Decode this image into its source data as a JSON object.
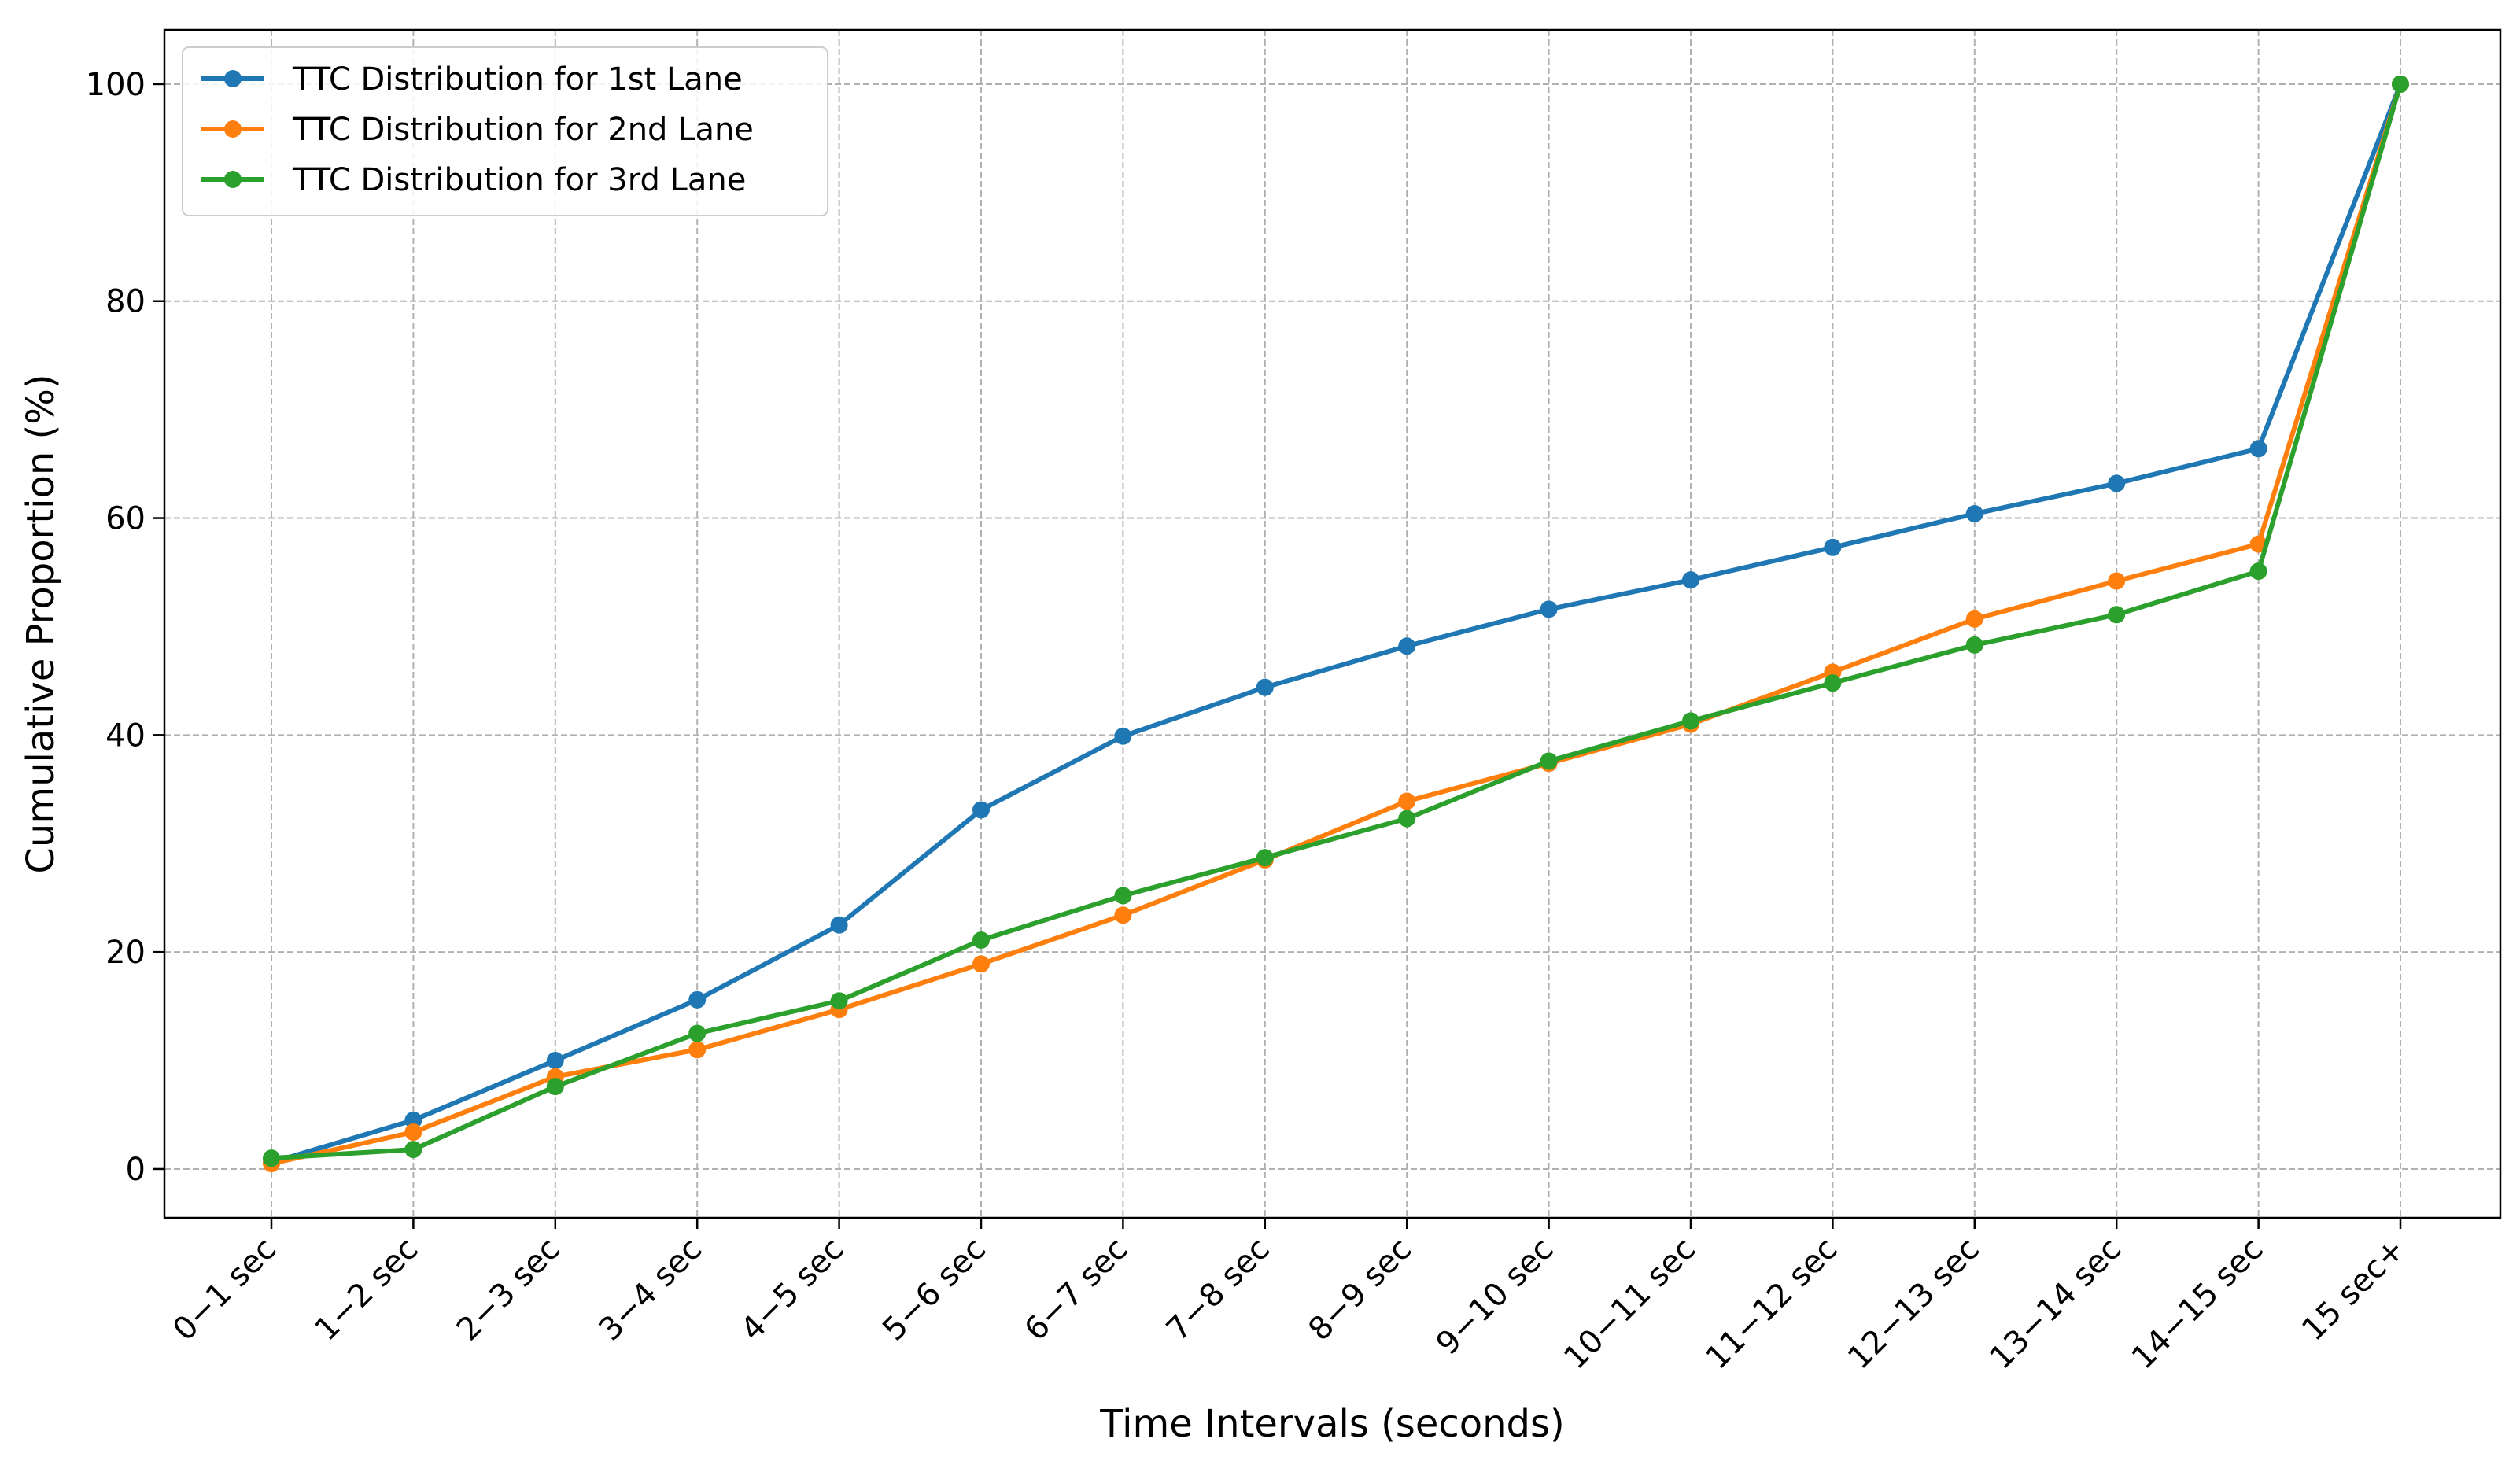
{
  "chart_data": {
    "type": "line",
    "title": "",
    "xlabel": "Time Intervals (seconds)",
    "ylabel": "Cumulative Proportion (%)",
    "categories": [
      "0−1 sec",
      "1−2 sec",
      "2−3 sec",
      "3−4 sec",
      "4−5 sec",
      "5−6 sec",
      "6−7 sec",
      "7−8 sec",
      "8−9 sec",
      "9−10 sec",
      "10−11 sec",
      "11−12 sec",
      "12−13 sec",
      "13−14 sec",
      "14−15 sec",
      "15 sec+"
    ],
    "ylim": [
      -4.5,
      105.0
    ],
    "yticks": [
      0,
      20,
      40,
      60,
      80,
      100
    ],
    "grid": true,
    "legend_position": "top-left",
    "series": [
      {
        "name": "TTC Distribution for 1st Lane",
        "color": "#1f77b4",
        "values": [
          0.6,
          4.5,
          10.0,
          15.6,
          22.5,
          33.1,
          39.9,
          44.4,
          48.2,
          51.6,
          54.3,
          57.3,
          60.4,
          63.2,
          66.4,
          100.0
        ]
      },
      {
        "name": "TTC Distribution for 2nd Lane",
        "color": "#ff7f0e",
        "values": [
          0.5,
          3.4,
          8.5,
          11.0,
          14.7,
          18.9,
          23.4,
          28.5,
          33.9,
          37.4,
          41.0,
          45.8,
          50.7,
          54.2,
          57.6,
          100.0
        ]
      },
      {
        "name": "TTC Distribution for 3rd Lane",
        "color": "#2ca02c",
        "values": [
          1.0,
          1.8,
          7.6,
          12.5,
          15.5,
          21.1,
          25.2,
          28.7,
          32.3,
          37.6,
          41.3,
          44.8,
          48.3,
          51.1,
          55.1,
          100.0
        ]
      }
    ]
  }
}
